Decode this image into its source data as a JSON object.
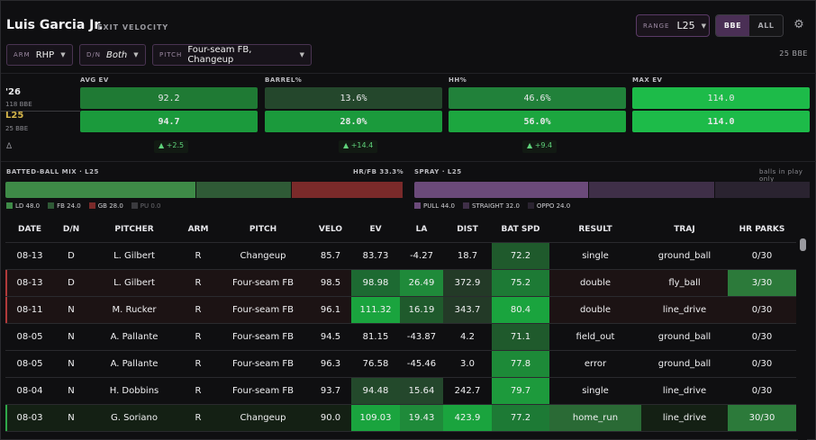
{
  "header": {
    "player": "Luis Garcia Jr.",
    "view": "EXIT VELOCITY",
    "range_label": "RANGE",
    "range_value": "L25",
    "seg_bbe": "BBE",
    "seg_all": "ALL",
    "gear_icon": "gear-icon"
  },
  "filters": {
    "arm_label": "ARM",
    "arm_value": "RHP",
    "dn_label": "D/N",
    "dn_value": "Both",
    "pitch_label": "PITCH",
    "pitch_value": "Four-seam FB, Changeup",
    "bbe_count": "25 BBE"
  },
  "rows_meta": {
    "season_label": "'26",
    "season_sub": "118 BBE",
    "recent_label": "L25",
    "recent_sub": "25 BBE",
    "delta_symbol": "Δ"
  },
  "metrics": [
    {
      "name": "AVG EV",
      "season": "92.2",
      "recent": "94.7",
      "delta": "▲ +2.5",
      "season_color": "#1f7a34",
      "recent_color": "#1b9a3c"
    },
    {
      "name": "BARREL%",
      "season": "13.6%",
      "recent": "28.0%",
      "delta": "▲ +14.4",
      "season_color": "#24472c",
      "recent_color": "#1b9a3c"
    },
    {
      "name": "HH%",
      "season": "46.6%",
      "recent": "56.0%",
      "delta": "▲ +9.4",
      "season_color": "#21813a",
      "recent_color": "#1ca63f"
    },
    {
      "name": "MAX EV",
      "season": "114.0",
      "recent": "114.0",
      "delta": "",
      "season_color": "#1dbb49",
      "recent_color": "#1dbb49"
    }
  ],
  "mix": {
    "title": "BATTED-BALL MIX · L25",
    "hrfb": "HR/FB 33.3%",
    "segments": [
      {
        "label": "LD",
        "value": 48.0,
        "color": "#3e8a47"
      },
      {
        "label": "FB",
        "value": 24.0,
        "color": "#2f5a36"
      },
      {
        "label": "GB",
        "value": 28.0,
        "color": "#7a2a2a"
      },
      {
        "label": "PU",
        "value": 0.0,
        "color": "#3a3a3e"
      }
    ],
    "legend": [
      "LD 48.0",
      "FB 24.0",
      "GB 28.0",
      "PU 0.0"
    ]
  },
  "spray": {
    "title": "SPRAY · L25",
    "note": "balls in play only",
    "segments": [
      {
        "label": "PULL",
        "value": 44.0,
        "color": "#6b4a7a"
      },
      {
        "label": "STRAIGHT",
        "value": 32.0,
        "color": "#3f2f48"
      },
      {
        "label": "OPPO",
        "value": 24.0,
        "color": "#2a2330"
      }
    ],
    "legend": [
      "PULL 44.0",
      "STRAIGHT 32.0",
      "OPPO 24.0"
    ]
  },
  "table": {
    "columns": [
      "DATE",
      "D/N",
      "PITCHER",
      "ARM",
      "PITCH",
      "VELO",
      "EV",
      "LA",
      "DIST",
      "BAT SPD",
      "RESULT",
      "TRAJ",
      "HR PARKS"
    ],
    "rows": [
      {
        "cells": [
          "08-13",
          "D",
          "L. Gilbert",
          "R",
          "Changeup",
          "85.7",
          "83.73",
          "-4.27",
          "18.7",
          "72.2",
          "single",
          "ground_ball",
          "0/30"
        ],
        "hl": "",
        "bg": [
          "",
          "",
          "",
          "",
          "",
          "",
          "",
          "",
          "",
          "#1f5a2c",
          "",
          "",
          ""
        ]
      },
      {
        "cells": [
          "08-13",
          "D",
          "L. Gilbert",
          "R",
          "Four-seam FB",
          "98.5",
          "98.98",
          "26.49",
          "372.9",
          "75.2",
          "double",
          "fly_ball",
          "3/30"
        ],
        "hl": "red",
        "bg": [
          "#1c1314",
          "#1c1314",
          "#1c1314",
          "#1c1314",
          "#1c1314",
          "#1c1314",
          "#1d6a32",
          "#1f8a3a",
          "#233a27",
          "#1d7a35",
          "#1c1314",
          "#1c1314",
          "#2c7a3a"
        ]
      },
      {
        "cells": [
          "08-11",
          "N",
          "M. Rucker",
          "R",
          "Four-seam FB",
          "96.1",
          "111.32",
          "16.19",
          "343.7",
          "80.4",
          "double",
          "line_drive",
          "0/30"
        ],
        "hl": "red",
        "bg": [
          "#1c1314",
          "#1c1314",
          "#1c1314",
          "#1c1314",
          "#1c1314",
          "#1c1314",
          "#1aa43e",
          "#1f5a2c",
          "#233a27",
          "#1aa43e",
          "#1c1314",
          "#1c1314",
          "#1c1314"
        ]
      },
      {
        "cells": [
          "08-05",
          "N",
          "A. Pallante",
          "R",
          "Four-seam FB",
          "94.5",
          "81.15",
          "-43.87",
          "4.2",
          "71.1",
          "field_out",
          "ground_ball",
          "0/30"
        ],
        "hl": "",
        "bg": [
          "",
          "",
          "",
          "",
          "",
          "",
          "",
          "",
          "",
          "#1f5a2c",
          "",
          "",
          ""
        ]
      },
      {
        "cells": [
          "08-05",
          "N",
          "A. Pallante",
          "R",
          "Four-seam FB",
          "96.3",
          "76.58",
          "-45.46",
          "3.0",
          "77.8",
          "error",
          "ground_ball",
          "0/30"
        ],
        "hl": "",
        "bg": [
          "",
          "",
          "",
          "",
          "",
          "",
          "",
          "",
          "",
          "#1d8a38",
          "",
          "",
          ""
        ]
      },
      {
        "cells": [
          "08-04",
          "N",
          "H. Dobbins",
          "R",
          "Four-seam FB",
          "93.7",
          "94.48",
          "15.64",
          "242.7",
          "79.7",
          "single",
          "line_drive",
          "0/30"
        ],
        "hl": "",
        "bg": [
          "",
          "",
          "",
          "",
          "",
          "",
          "#23492b",
          "#24472c",
          "",
          "#1d9a3c",
          "",
          "",
          ""
        ]
      },
      {
        "cells": [
          "08-03",
          "N",
          "G. Soriano",
          "R",
          "Changeup",
          "90.0",
          "109.03",
          "19.43",
          "423.9",
          "77.2",
          "home_run",
          "line_drive",
          "30/30"
        ],
        "hl": "green",
        "bg": [
          "#142014",
          "#142014",
          "#142014",
          "#142014",
          "#142014",
          "#142014",
          "#1aa43e",
          "#1f8a3a",
          "#1aa43e",
          "#1d7a35",
          "#2a6a35",
          "#142014",
          "#2c7a3a"
        ]
      }
    ]
  }
}
